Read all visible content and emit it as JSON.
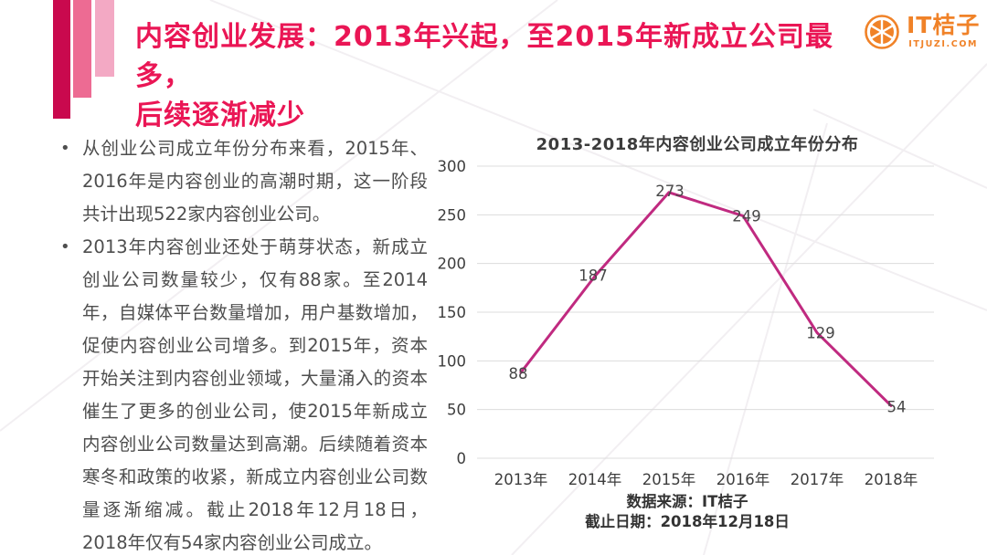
{
  "header": {
    "title_line1": "内容创业发展：2013年兴起，至2015年新成立公司最多，",
    "title_line2": "后续逐渐减少"
  },
  "logo": {
    "name": "IT桔子",
    "domain": "ITJUZI.COM",
    "icon": "orange-fruit-icon",
    "color": "#F08228"
  },
  "bullets": [
    "从创业公司成立年份分布来看，2015年、2016年是内容创业的高潮时期，这一阶段共计出现522家内容创业公司。",
    "2013年内容创业还处于萌芽状态，新成立创业公司数量较少，仅有88家。至2014年，自媒体平台数量增加，用户基数增加，促使内容创业公司增多。到2015年，资本开始关注到内容创业领域，大量涌入的资本催生了更多的创业公司，使2015年新成立内容创业公司数量达到高潮。后续随着资本寒冬和政策的收紧，新成立内容创业公司数量逐渐缩减。截止2018年12月18日，2018年仅有54家内容创业公司成立。"
  ],
  "chart_data": {
    "type": "line",
    "title": "2013-2018年内容创业公司成立年份分布",
    "categories": [
      "2013年",
      "2014年",
      "2015年",
      "2016年",
      "2017年",
      "2018年"
    ],
    "values": [
      88,
      187,
      273,
      249,
      129,
      54
    ],
    "xlabel": "",
    "ylabel": "",
    "ylim": [
      0,
      300
    ],
    "yticks": [
      0,
      50,
      100,
      150,
      200,
      250,
      300
    ],
    "grid": "horizontal",
    "legend": "none",
    "line_color": "#C02A80",
    "source_note": "数据来源：IT桔子",
    "cutoff_note": "截止日期：2018年12月18日"
  },
  "colors": {
    "title_pink": "#EA1655",
    "bar_dark": "#C9094E",
    "bar_mid": "#ED6B93",
    "bar_light": "#F3A9C4",
    "line_magenta": "#C02A80",
    "logo_orange": "#F08228",
    "body_text": "#4E4E4E",
    "gridline": "#DCDCDC"
  }
}
